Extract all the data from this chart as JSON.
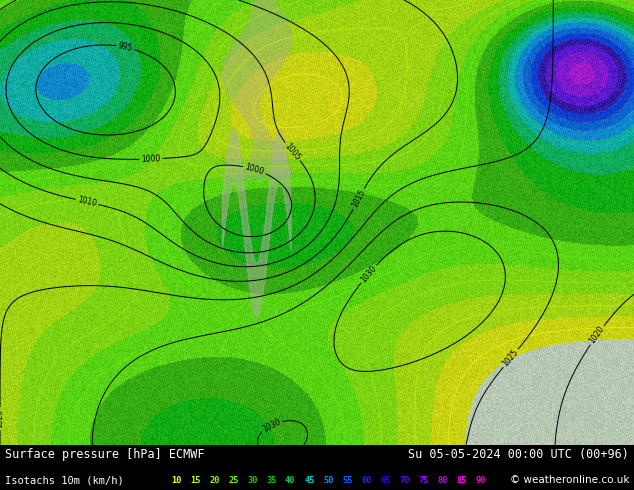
{
  "title_left": "Surface pressure [hPa] ECMWF",
  "title_right": "Su 05-05-2024 00:00 UTC (00+96)",
  "legend_label": "Isotachs 10m (km/h)",
  "copyright": "© weatheronline.co.uk",
  "isotach_values": [
    10,
    15,
    20,
    25,
    30,
    35,
    40,
    45,
    50,
    55,
    60,
    65,
    70,
    75,
    80,
    85,
    90
  ],
  "isotach_colors": [
    "#ffff00",
    "#c8ff00",
    "#96ff00",
    "#64ff00",
    "#32c800",
    "#00c800",
    "#00c864",
    "#00c8c8",
    "#0096ff",
    "#0064ff",
    "#0032ff",
    "#3200c8",
    "#6400ff",
    "#9600ff",
    "#c800ff",
    "#ff00ff",
    "#ff00c8"
  ],
  "map_bg_color": "#c8d8c0",
  "ocean_color": "#d0e8f0",
  "land_color": "#c8d4b8",
  "topo_color": "#b8b8a8",
  "green_light": "#b8e8a0",
  "bottom_bar_color": "#000000",
  "font_size_title": 8.5,
  "font_size_legend": 7.5,
  "font_size_isotach": 6.2,
  "figure_width": 6.34,
  "figure_height": 4.9,
  "dpi": 100
}
